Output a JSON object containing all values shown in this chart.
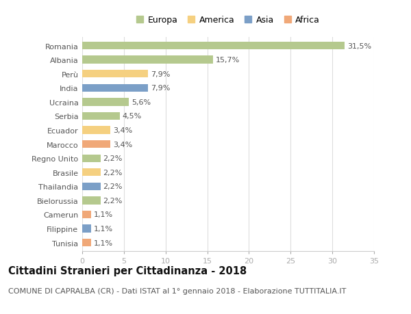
{
  "countries": [
    "Romania",
    "Albania",
    "Perù",
    "India",
    "Ucraina",
    "Serbia",
    "Ecuador",
    "Marocco",
    "Regno Unito",
    "Brasile",
    "Thailandia",
    "Bielorussia",
    "Camerun",
    "Filippine",
    "Tunisia"
  ],
  "values": [
    31.5,
    15.7,
    7.9,
    7.9,
    5.6,
    4.5,
    3.4,
    3.4,
    2.2,
    2.2,
    2.2,
    2.2,
    1.1,
    1.1,
    1.1
  ],
  "labels": [
    "31,5%",
    "15,7%",
    "7,9%",
    "7,9%",
    "5,6%",
    "4,5%",
    "3,4%",
    "3,4%",
    "2,2%",
    "2,2%",
    "2,2%",
    "2,2%",
    "1,1%",
    "1,1%",
    "1,1%"
  ],
  "continents": [
    "Europa",
    "Europa",
    "America",
    "Asia",
    "Europa",
    "Europa",
    "America",
    "Africa",
    "Europa",
    "America",
    "Asia",
    "Europa",
    "Africa",
    "Asia",
    "Africa"
  ],
  "continent_colors": {
    "Europa": "#b5c98e",
    "America": "#f5d080",
    "Asia": "#7b9fc7",
    "Africa": "#f0a878"
  },
  "legend_order": [
    "Europa",
    "America",
    "Asia",
    "Africa"
  ],
  "title": "Cittadini Stranieri per Cittadinanza - 2018",
  "subtitle": "COMUNE DI CAPRALBA (CR) - Dati ISTAT al 1° gennaio 2018 - Elaborazione TUTTITALIA.IT",
  "xlim": [
    0,
    35
  ],
  "xticks": [
    0,
    5,
    10,
    15,
    20,
    25,
    30,
    35
  ],
  "background_color": "#ffffff",
  "plot_bg_color": "#ffffff",
  "grid_color": "#dddddd",
  "bar_height": 0.55,
  "title_fontsize": 10.5,
  "subtitle_fontsize": 8,
  "label_fontsize": 8,
  "tick_fontsize": 8,
  "legend_fontsize": 9
}
